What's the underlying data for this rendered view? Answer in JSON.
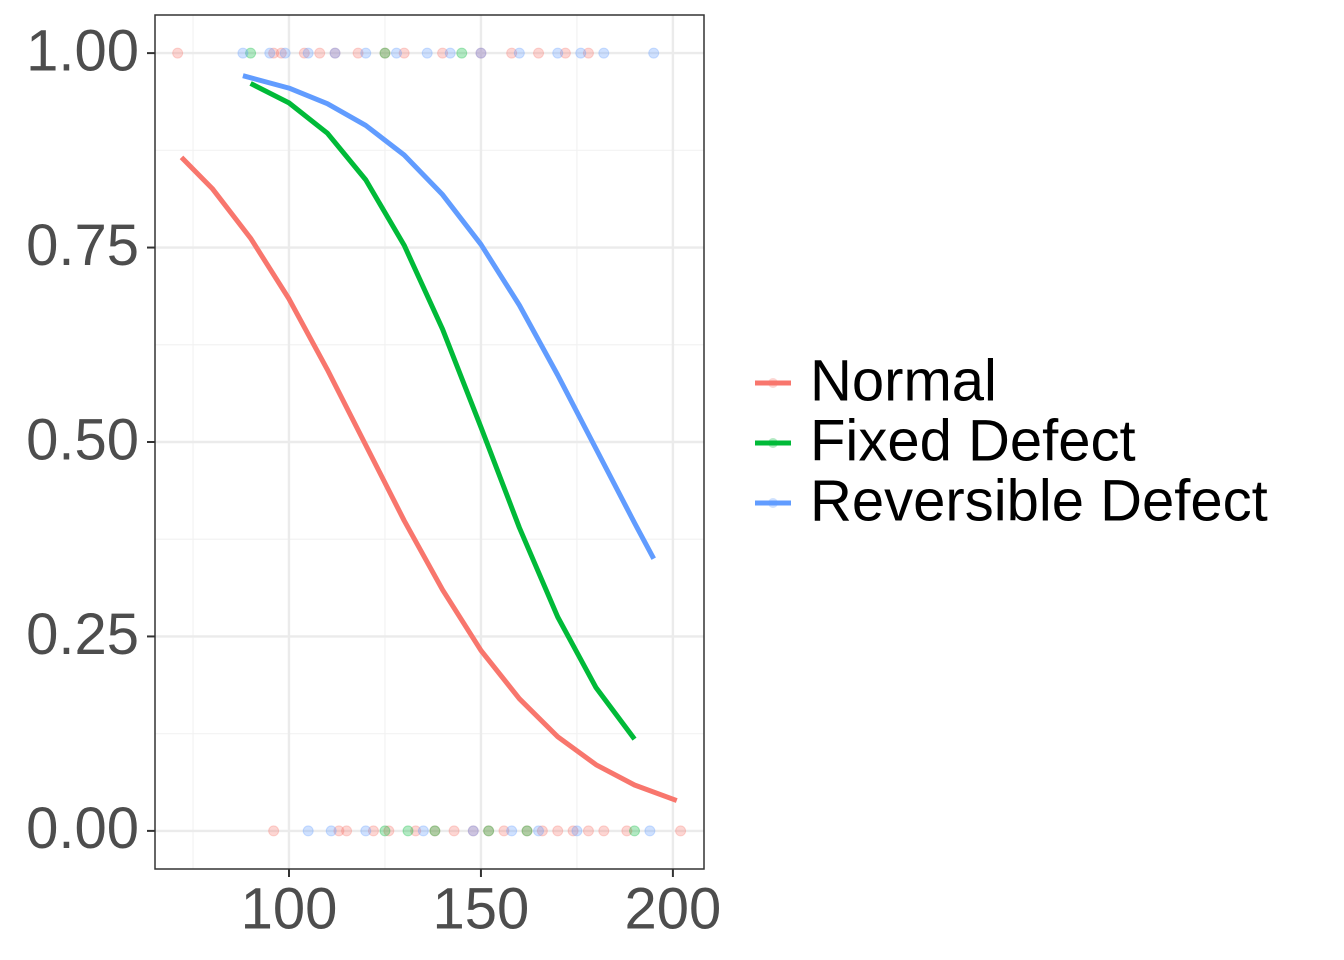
{
  "chart_data": {
    "type": "line",
    "xlim": [
      65.1,
      208.1
    ],
    "ylim": [
      -0.049,
      1.049
    ],
    "xticks": [
      100,
      150,
      200
    ],
    "yticks": [
      {
        "value": 0,
        "label": "0.00"
      },
      {
        "value": 0.25,
        "label": "0.25"
      },
      {
        "value": 0.5,
        "label": "0.50"
      },
      {
        "value": 0.75,
        "label": "0.75"
      },
      {
        "value": 1,
        "label": "1.00"
      }
    ],
    "grid": true,
    "legend": "right",
    "series": [
      {
        "name": "Normal",
        "color": "#f8766d",
        "x": [
          72,
          80,
          90,
          100,
          110,
          120,
          130,
          140,
          150,
          160,
          170,
          180,
          190,
          201
        ],
        "values": [
          0.866,
          0.826,
          0.762,
          0.684,
          0.593,
          0.496,
          0.399,
          0.31,
          0.232,
          0.17,
          0.121,
          0.085,
          0.059,
          0.039
        ],
        "points": {
          "x": [
            71,
            96,
            98,
            104,
            108,
            112,
            118,
            125,
            130,
            140,
            150,
            158,
            165,
            172,
            178,
            96,
            113,
            115,
            122,
            126,
            133,
            138,
            143,
            148,
            152,
            156,
            162,
            166,
            170,
            174,
            178,
            182,
            188,
            202
          ],
          "values": [
            1,
            1,
            1,
            1,
            1,
            1,
            1,
            1,
            1,
            1,
            1,
            1,
            1,
            1,
            1,
            0,
            0,
            0,
            0,
            0,
            0,
            0,
            0,
            0,
            0,
            0,
            0,
            0,
            0,
            0,
            0,
            0,
            0,
            0
          ]
        }
      },
      {
        "name": "Fixed Defect",
        "color": "#00ba38",
        "x": [
          90,
          100,
          110,
          120,
          130,
          140,
          150,
          160,
          170,
          180,
          190
        ],
        "values": [
          0.961,
          0.936,
          0.897,
          0.837,
          0.753,
          0.645,
          0.519,
          0.39,
          0.275,
          0.184,
          0.118
        ],
        "points": {
          "x": [
            90,
            125,
            145,
            125,
            131,
            138,
            152,
            162,
            190
          ],
          "values": [
            1,
            1,
            1,
            0,
            0,
            0,
            0,
            0,
            0
          ]
        }
      },
      {
        "name": "Reversible Defect",
        "color": "#619cff",
        "x": [
          88,
          100,
          110,
          120,
          130,
          140,
          150,
          160,
          170,
          180,
          190,
          195
        ],
        "values": [
          0.971,
          0.955,
          0.935,
          0.907,
          0.869,
          0.818,
          0.754,
          0.676,
          0.586,
          0.491,
          0.396,
          0.35
        ],
        "points": {
          "x": [
            88,
            95,
            99,
            105,
            112,
            120,
            128,
            136,
            142,
            150,
            160,
            170,
            176,
            182,
            195,
            105,
            111,
            120,
            135,
            148,
            158,
            165,
            175,
            194
          ],
          "values": [
            1,
            1,
            1,
            1,
            1,
            1,
            1,
            1,
            1,
            1,
            1,
            1,
            1,
            1,
            1,
            0,
            0,
            0,
            0,
            0,
            0,
            0,
            0,
            0
          ]
        }
      }
    ]
  }
}
